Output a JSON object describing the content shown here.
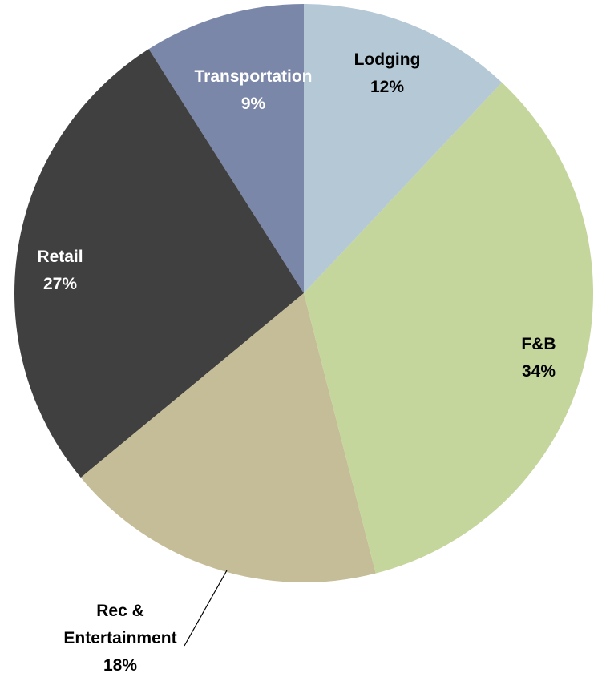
{
  "chart_data": {
    "type": "pie",
    "categories": [
      "Lodging",
      "F&B",
      "Rec & Entertainment",
      "Retail",
      "Transportation"
    ],
    "values": [
      12,
      34,
      18,
      27,
      9
    ],
    "value_labels": [
      "12%",
      "34%",
      "18%",
      "27%",
      "9%"
    ],
    "colors": [
      "#b4c8d6",
      "#c4d69c",
      "#c5bd98",
      "#404040",
      "#7b87a9"
    ],
    "label_colors": [
      "#000000",
      "#000000",
      "#000000",
      "#ffffff",
      "#ffffff"
    ]
  }
}
